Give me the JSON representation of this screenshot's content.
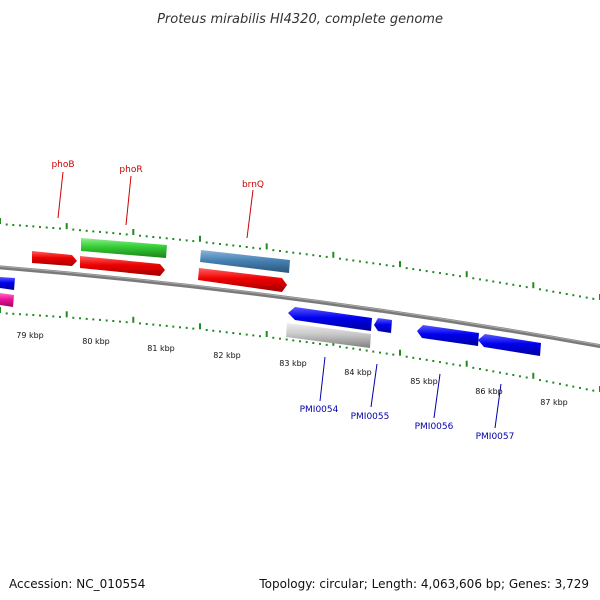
{
  "title": "Proteus mirabilis HI4320, complete genome",
  "footer": {
    "accession": "Accession: NC_010554",
    "stats": "Topology: circular; Length: 4,063,606 bp; Genes: 3,729"
  },
  "scale": {
    "labels": [
      "79 kbp",
      "80 kbp",
      "81 kbp",
      "82 kbp",
      "83 kbp",
      "84 kbp",
      "85 kbp",
      "86 kbp",
      "87 kbp"
    ]
  },
  "genes": {
    "forward_labels": [
      "phoB",
      "phoR",
      "brnQ"
    ],
    "reverse_labels": [
      "PMI0054",
      "PMI0055",
      "PMI0056",
      "PMI0057"
    ]
  },
  "colors": {
    "forward_label": "#cc0000",
    "reverse_label": "#0000aa",
    "cds_red": "#ee0000",
    "cds_green": "#33cc33",
    "cds_steelblue": "#4682b4",
    "cds_blue": "#0000ee",
    "cds_gray": "#c0c0c0",
    "cds_pink": "#ee1199",
    "ticks": "#228b22",
    "backbone": "#7a7a7a"
  }
}
